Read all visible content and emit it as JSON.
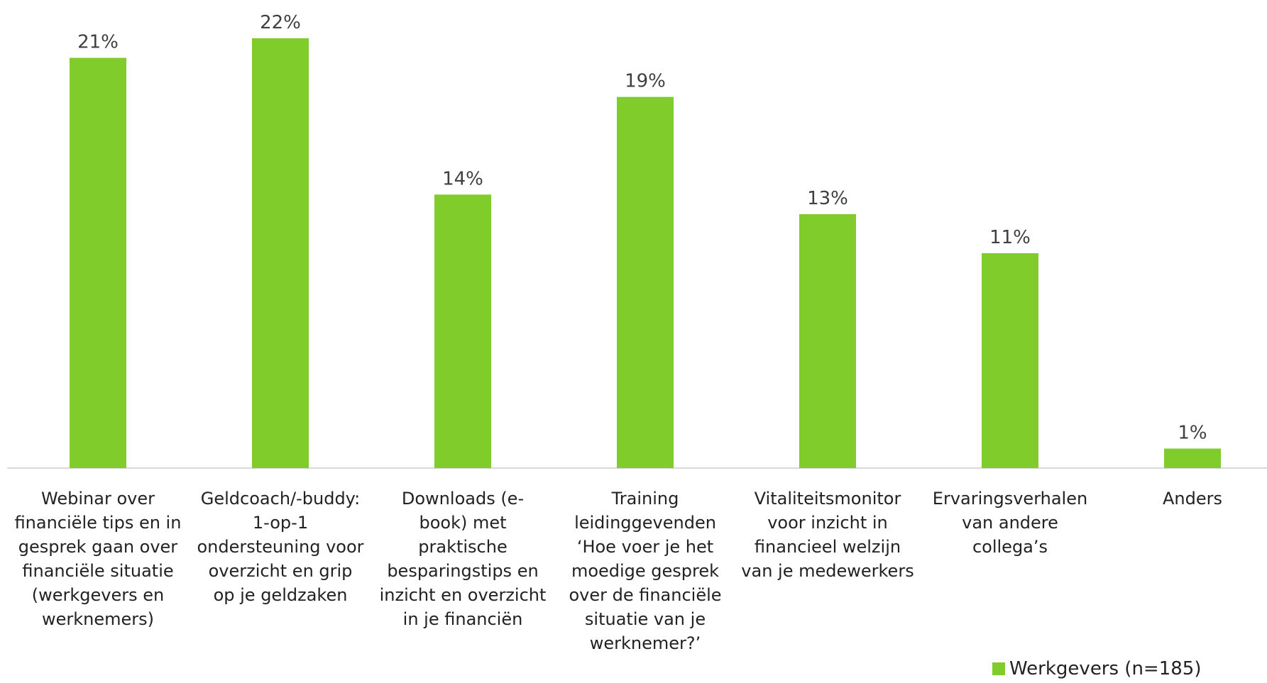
{
  "chart_data": {
    "type": "bar",
    "categories": [
      "Webinar over financiële tips en in gesprek gaan over financiële situatie (werkgevers en werknemers)",
      "Geldcoach/-buddy: 1-op-1 ondersteuning voor overzicht en grip op je geldzaken",
      "Downloads (e-book) met praktische besparingstips en inzicht en overzicht in je financiën",
      "Training leidinggevenden ‘Hoe voer je het moedige gesprek over de financiële situatie van je werknemer?’",
      "Vitaliteitsmonitor voor inzicht in financieel welzijn van je medewerkers",
      "Ervaringsverhalen van andere collega’s",
      "Anders"
    ],
    "category_lines": [
      [
        "Webinar over",
        "financiële tips en in",
        "gesprek gaan over",
        "financiële situatie",
        "(werkgevers en",
        "werknemers)"
      ],
      [
        "Geldcoach/-buddy:",
        "1-op-1",
        "ondersteuning voor",
        "overzicht en grip",
        "op je geldzaken"
      ],
      [
        "Downloads (e-",
        "book) met",
        "praktische",
        "besparingstips en",
        "inzicht en overzicht",
        "in je financiën"
      ],
      [
        "Training",
        "leidinggevenden",
        "‘Hoe voer je het",
        "moedige gesprek",
        "over de financiële",
        "situatie van je",
        "werknemer?’"
      ],
      [
        "Vitaliteitsmonitor",
        "voor inzicht in",
        "financieel welzijn",
        "van je medewerkers"
      ],
      [
        "Ervaringsverhalen",
        "van andere",
        "collega’s"
      ],
      [
        "Anders"
      ]
    ],
    "series": [
      {
        "name": "Werkgevers (n=185)",
        "values": [
          21,
          22,
          14,
          19,
          13,
          11,
          1
        ],
        "labels": [
          "21%",
          "22%",
          "14%",
          "19%",
          "13%",
          "11%",
          "1%"
        ]
      }
    ],
    "ylim": [
      0,
      22
    ],
    "grid": false,
    "legend_position": "bottom-right",
    "colors": {
      "bar": "#7fcc2a",
      "axis": "#d9d9d9",
      "label": "#404040"
    }
  }
}
